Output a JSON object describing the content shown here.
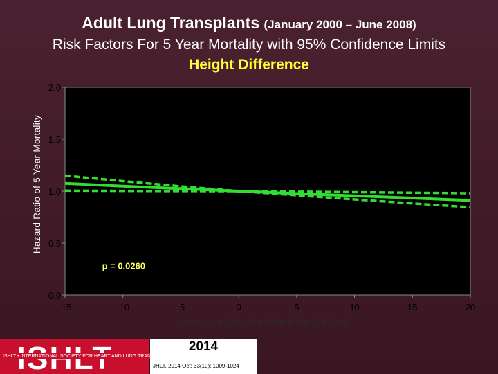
{
  "title": {
    "main": "Adult Lung Transplants",
    "period": "(January 2000 – June 2008)",
    "subtitle": "Risk Factors For 5 Year Mortality with 95% Confidence Limits",
    "variable": "Height Difference"
  },
  "colors": {
    "background": "#3a1a26",
    "plot_background": "#000000",
    "line": "#33dd33",
    "title": "#ffffff",
    "variable_title": "#ffff33",
    "annotation": "#ffff66"
  },
  "chart_data": {
    "type": "line",
    "title": "Height Difference",
    "xlabel": "Donor Height - Recipient Height (cm)",
    "ylabel": "Hazard Ratio of 5 Year Mortality",
    "xlim": [
      -15,
      20
    ],
    "ylim": [
      0,
      2
    ],
    "x_ticks": [
      "-15",
      "-10",
      "-5",
      "0",
      "5",
      "10",
      "15",
      "20"
    ],
    "y_ticks": [
      "0.0",
      "0.5",
      "1.0",
      "1.5",
      "2.0"
    ],
    "grid": false,
    "series": [
      {
        "role": "estimate",
        "style": "solid",
        "x": [
          -15,
          -10,
          -5,
          0,
          5,
          10,
          15,
          20
        ],
        "y": [
          1.075,
          1.048,
          1.024,
          1.0,
          0.977,
          0.955,
          0.933,
          0.911
        ]
      },
      {
        "role": "upper",
        "style": "dashed",
        "x": [
          -15,
          -10,
          -5,
          0,
          5,
          10,
          15,
          20
        ],
        "y": [
          1.15,
          1.097,
          1.047,
          1.0,
          0.995,
          0.99,
          0.985,
          0.98
        ]
      },
      {
        "role": "lower",
        "style": "dashed",
        "x": [
          -15,
          -10,
          -5,
          0,
          5,
          10,
          15,
          20
        ],
        "y": [
          1.005,
          1.003,
          1.001,
          1.0,
          0.96,
          0.92,
          0.882,
          0.845
        ]
      }
    ],
    "annotation": "p = 0.0260"
  },
  "footer": {
    "logo": "ISHLT",
    "tagline": "ISHLT • INTERNATIONAL SOCIETY FOR HEART AND LUNG TRANSPLANTATION",
    "year": "2014",
    "citation": "JHLT. 2014 Oct; 33(10): 1009-1024"
  }
}
